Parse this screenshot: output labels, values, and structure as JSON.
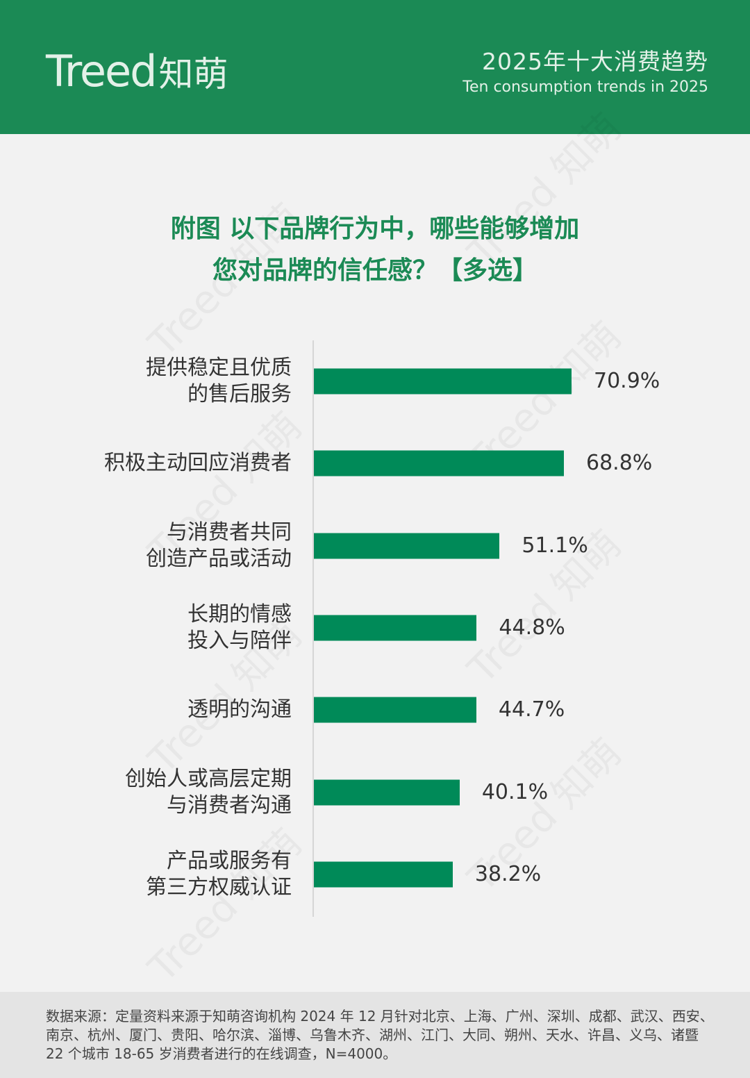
{
  "header": {
    "logo_text": "Treed",
    "logo_cn": "知萌",
    "title_cn": "2025年十大消费趋势",
    "title_en": "Ten consumption trends in 2025"
  },
  "title": {
    "line1": "附图 以下品牌行为中，哪些能够增加",
    "line2": "您对品牌的信任感？【多选】"
  },
  "chart_data": {
    "type": "bar",
    "orientation": "horizontal",
    "categories": [
      "提供稳定且优质的售后服务",
      "积极主动回应消费者",
      "与消费者共同创造产品或活动",
      "长期的情感投入与陪伴",
      "透明的沟通",
      "创始人或高层定期与消费者沟通",
      "产品或服务有第三方权威认证"
    ],
    "category_lines": [
      [
        "提供稳定且优质",
        "的售后服务"
      ],
      [
        "积极主动回应消费者"
      ],
      [
        "与消费者共同",
        "创造产品或活动"
      ],
      [
        "长期的情感",
        "投入与陪伴"
      ],
      [
        "透明的沟通"
      ],
      [
        "创始人或高层定期",
        "与消费者沟通"
      ],
      [
        "产品或服务有",
        "第三方权威认证"
      ]
    ],
    "values": [
      70.9,
      68.8,
      51.1,
      44.8,
      44.7,
      40.1,
      38.2
    ],
    "value_labels": [
      "70.9%",
      "68.8%",
      "51.1%",
      "44.8%",
      "44.7%",
      "40.1%",
      "38.2%"
    ],
    "color": "#008a58"
  },
  "footer": {
    "source": "数据来源：定量资料来源于知萌咨询机构 2024 年 12 月针对北京、上海、广州、深圳、成都、武汉、西安、南京、杭州、厦门、贵阳、哈尔滨、淄博、乌鲁木齐、湖州、江门、大同、朔州、天水、许昌、义乌、诸暨 22 个城市 18-65 岁消费者进行的在线调查，N=4000。"
  }
}
